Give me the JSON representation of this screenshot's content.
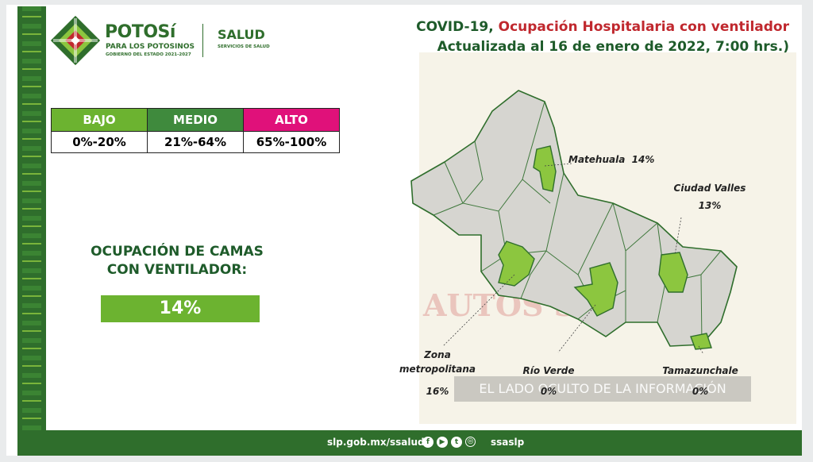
{
  "header": {
    "brand_main": "POTOSí",
    "brand_sub": "PARA LOS POTOSINOS",
    "brand_gov": "GOBIERNO DEL ESTADO 2021-2027",
    "salud_main": "SALUD",
    "salud_sub": "SERVICIOS DE SALUD"
  },
  "title": {
    "prefix": "COVID-19, ",
    "accent": "Ocupación Hospitalaria con ventilador",
    "line2": "Actualizada al 16 de enero de 2022, 7:00 hrs.)"
  },
  "legend": {
    "headers": [
      "BAJO",
      "MEDIO",
      "ALTO"
    ],
    "ranges": [
      "0%-20%",
      "21%-64%",
      "65%-100%"
    ],
    "colors": [
      "#6cb330",
      "#3f8a3d",
      "#e0117a"
    ]
  },
  "occupancy": {
    "title_line1": "OCUPACIÓN DE CAMAS",
    "title_line2": "CON VENTILADOR:",
    "value": "14%"
  },
  "map": {
    "regions": [
      {
        "name": "Matehuala",
        "value": "14%"
      },
      {
        "name": "Ciudad Valles",
        "value": "13%"
      },
      {
        "name_line1": "Zona",
        "name_line2": "metropolitana",
        "value": "16%"
      },
      {
        "name": "Río Verde",
        "value": "0%"
      },
      {
        "name": "Tamazunchale",
        "value": "0%"
      }
    ],
    "highlight_color": "#8cc63f",
    "base_color": "#d6d5d0",
    "border_color": "#2f6e2c"
  },
  "watermark": {
    "text": "AUTOS SNITSTO",
    "band": "EL LADO OCULTO DE LA INFORMACIÓN"
  },
  "footer": {
    "url": "slp.gob.mx/ssalud",
    "handle": "ssaslp",
    "icons": [
      "facebook-icon",
      "youtube-icon",
      "twitter-icon",
      "instagram-icon"
    ]
  }
}
